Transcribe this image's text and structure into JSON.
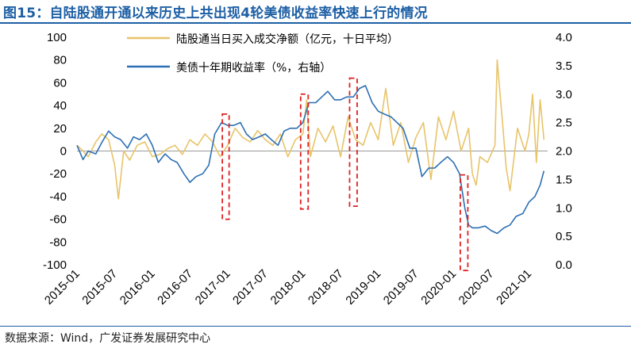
{
  "header": {
    "title": "图15：自陆股通开通以来历史上共出现4轮美债收益率快速上行的情况"
  },
  "footer": {
    "source": "数据来源：Wind，广发证券发展研究中心"
  },
  "colors": {
    "title": "#1d5fa5",
    "flow_series": "#e8c46a",
    "yield_series": "#2c6fb3",
    "highlight_box": "#e02020"
  },
  "chart_data": {
    "type": "line",
    "title": "自陆股通开通以来历史上共出现4轮美债收益率快速上行的情况",
    "x_labels": [
      "2015-01",
      "2015-07",
      "2016-01",
      "2016-07",
      "2017-01",
      "2017-07",
      "2018-01",
      "2018-07",
      "2019-01",
      "2019-07",
      "2020-01",
      "2020-07",
      "2021-01"
    ],
    "x_range": [
      2015.0,
      2021.25
    ],
    "y_left": {
      "range": [
        -100,
        100
      ],
      "ticks": [
        100,
        80,
        60,
        40,
        20,
        0,
        -20,
        -40,
        -60,
        -80,
        -100
      ]
    },
    "y_right": {
      "range": [
        0.0,
        4.0
      ],
      "ticks": [
        "4.0",
        "3.5",
        "3.0",
        "2.5",
        "2.0",
        "1.5",
        "1.0",
        "0.5",
        "0.0"
      ]
    },
    "series": [
      {
        "name": "陆股通当日买入成交净额（亿元，十日平均）",
        "axis": "left",
        "x": [
          2015.0,
          2015.08,
          2015.15,
          2015.25,
          2015.33,
          2015.42,
          2015.5,
          2015.55,
          2015.62,
          2015.7,
          2015.8,
          2015.9,
          2016.0,
          2016.1,
          2016.2,
          2016.3,
          2016.4,
          2016.5,
          2016.6,
          2016.7,
          2016.8,
          2016.9,
          2017.0,
          2017.1,
          2017.2,
          2017.3,
          2017.4,
          2017.5,
          2017.6,
          2017.7,
          2017.8,
          2017.9,
          2018.0,
          2018.05,
          2018.1,
          2018.2,
          2018.3,
          2018.4,
          2018.5,
          2018.6,
          2018.7,
          2018.8,
          2018.9,
          2019.0,
          2019.1,
          2019.15,
          2019.2,
          2019.3,
          2019.4,
          2019.5,
          2019.6,
          2019.7,
          2019.8,
          2019.9,
          2020.0,
          2020.1,
          2020.2,
          2020.25,
          2020.3,
          2020.35,
          2020.45,
          2020.55,
          2020.58,
          2020.65,
          2020.7,
          2020.75,
          2020.85,
          2020.95,
          2021.0,
          2021.05,
          2021.1,
          2021.15,
          2021.2
        ],
        "values": [
          5,
          0,
          -5,
          8,
          15,
          10,
          -12,
          -42,
          0,
          -8,
          5,
          8,
          -5,
          -3,
          2,
          5,
          -3,
          10,
          5,
          15,
          8,
          -5,
          5,
          20,
          12,
          8,
          18,
          10,
          5,
          15,
          -5,
          10,
          15,
          45,
          -5,
          20,
          8,
          22,
          -5,
          30,
          10,
          5,
          25,
          10,
          55,
          30,
          5,
          25,
          -10,
          12,
          25,
          -25,
          30,
          10,
          35,
          0,
          20,
          -20,
          -30,
          -5,
          -10,
          5,
          80,
          25,
          -15,
          -35,
          20,
          0,
          15,
          50,
          -10,
          45,
          10
        ]
      },
      {
        "name": "美债十年期收益率（%，右轴）",
        "axis": "right",
        "x": [
          2015.0,
          2015.08,
          2015.15,
          2015.25,
          2015.33,
          2015.42,
          2015.5,
          2015.58,
          2015.67,
          2015.75,
          2015.83,
          2015.92,
          2016.0,
          2016.08,
          2016.17,
          2016.25,
          2016.33,
          2016.42,
          2016.5,
          2016.58,
          2016.67,
          2016.75,
          2016.83,
          2016.92,
          2017.0,
          2017.08,
          2017.17,
          2017.25,
          2017.33,
          2017.42,
          2017.5,
          2017.58,
          2017.67,
          2017.75,
          2017.83,
          2017.92,
          2018.0,
          2018.08,
          2018.17,
          2018.25,
          2018.33,
          2018.42,
          2018.5,
          2018.58,
          2018.67,
          2018.75,
          2018.83,
          2018.92,
          2019.0,
          2019.08,
          2019.17,
          2019.25,
          2019.33,
          2019.42,
          2019.5,
          2019.58,
          2019.67,
          2019.75,
          2019.83,
          2019.92,
          2020.0,
          2020.08,
          2020.15,
          2020.2,
          2020.25,
          2020.33,
          2020.42,
          2020.5,
          2020.58,
          2020.67,
          2020.75,
          2020.83,
          2020.92,
          2021.0,
          2021.08,
          2021.15,
          2021.2
        ],
        "values": [
          2.1,
          1.85,
          2.0,
          1.95,
          2.15,
          2.35,
          2.25,
          2.2,
          2.05,
          2.25,
          2.2,
          2.3,
          2.1,
          1.8,
          1.95,
          1.85,
          1.8,
          1.6,
          1.45,
          1.55,
          1.6,
          1.75,
          2.3,
          2.5,
          2.45,
          2.45,
          2.5,
          2.3,
          2.2,
          2.25,
          2.3,
          2.2,
          2.1,
          2.35,
          2.4,
          2.4,
          2.5,
          2.85,
          2.85,
          2.95,
          3.05,
          2.9,
          2.9,
          2.95,
          2.95,
          3.1,
          3.15,
          2.85,
          2.7,
          2.65,
          2.6,
          2.5,
          2.4,
          2.05,
          2.05,
          1.55,
          1.7,
          1.7,
          1.8,
          1.9,
          1.8,
          1.6,
          1.0,
          0.7,
          0.65,
          0.65,
          0.68,
          0.6,
          0.55,
          0.65,
          0.7,
          0.85,
          0.9,
          1.1,
          1.2,
          1.4,
          1.65
        ]
      }
    ],
    "highlights": [
      {
        "x_start": 2016.93,
        "x_end": 2017.02,
        "y_top": 2.65,
        "y_bottom": 0.8
      },
      {
        "x_start": 2017.97,
        "x_end": 2018.07,
        "y_top": 3.0,
        "y_bottom": 0.98
      },
      {
        "x_start": 2018.62,
        "x_end": 2018.72,
        "y_top": 3.28,
        "y_bottom": 1.03
      },
      {
        "x_start": 2020.09,
        "x_end": 2020.19,
        "y_top": 1.58,
        "y_bottom": -0.1
      }
    ],
    "legend": {
      "placement": "top-center"
    }
  }
}
